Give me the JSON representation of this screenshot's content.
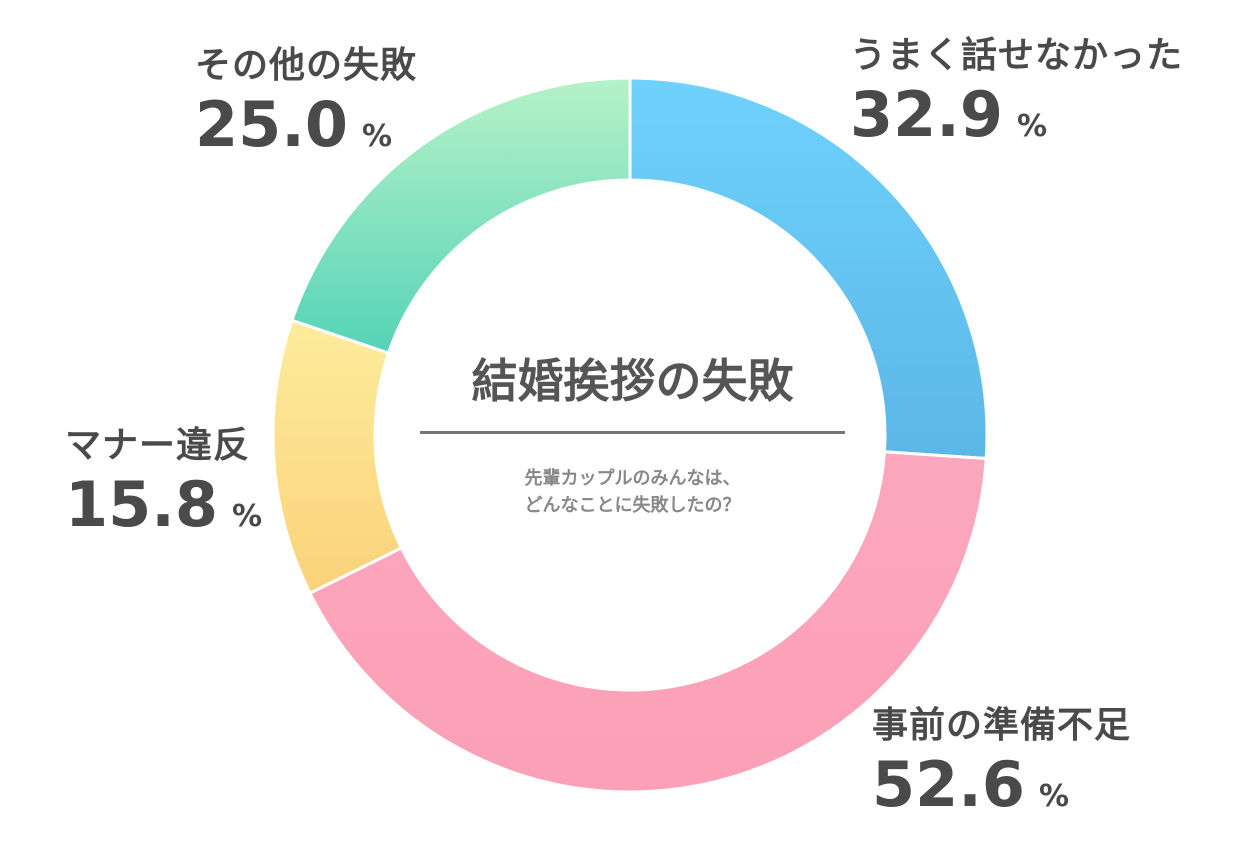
{
  "chart_data": {
    "type": "pie",
    "donut": true,
    "title": "結婚挨拶の失敗",
    "subtitle": [
      "先輩カップルのみんなは、",
      "どんなことに失敗したの？"
    ],
    "unit": "%",
    "slices": [
      {
        "label": "うまく話せなかった",
        "value": 32.9,
        "color_top": "#6fd2fc",
        "color_bottom": "#5cb6e6"
      },
      {
        "label": "事前の準備不足",
        "value": 52.6,
        "color_top": "#fca7be",
        "color_bottom": "#fba0b6"
      },
      {
        "label": "マナー違反",
        "value": 15.8,
        "color_top": "#fdec9c",
        "color_bottom": "#fbd27a"
      },
      {
        "label": "その他の失敗",
        "value": 25.0,
        "color_top": "#b6f2c8",
        "color_bottom": "#55d3b7"
      }
    ]
  }
}
